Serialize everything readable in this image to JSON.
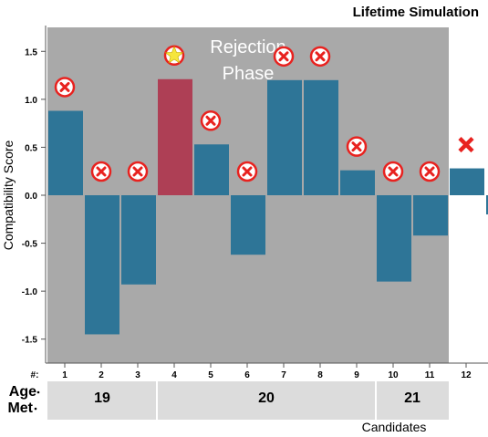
{
  "header": {
    "title": "Lifetime Simulation"
  },
  "chart_data": {
    "type": "bar",
    "title": "Lifetime Simulation",
    "ylabel": "Compatibility Score",
    "xlabel": "Candidates",
    "ylim": [
      -1.75,
      1.75
    ],
    "yticks": [
      "1.5",
      "1.0",
      "0.5",
      "0.0",
      "-0.5",
      "-1.0",
      "-1.5"
    ],
    "ytick_values": [
      1.5,
      1.0,
      0.5,
      0.0,
      -0.5,
      -1.0,
      -1.5
    ],
    "x_prefix_label": "#:",
    "categories": [
      "1",
      "2",
      "3",
      "4",
      "5",
      "6",
      "7",
      "8",
      "9",
      "10",
      "11",
      "12",
      ""
    ],
    "values": [
      0.88,
      -1.45,
      -0.93,
      1.21,
      0.53,
      -0.62,
      1.2,
      1.2,
      0.26,
      -0.9,
      -0.42,
      0.28,
      -0.2
    ],
    "markers": [
      "reject",
      "reject",
      "reject",
      "chosen",
      "reject",
      "reject",
      "reject",
      "reject",
      "reject",
      "reject",
      "reject",
      "cross",
      "none"
    ],
    "highlight": [
      false,
      false,
      false,
      true,
      false,
      false,
      false,
      false,
      false,
      false,
      false,
      false,
      false
    ],
    "phase_annotation": [
      "Rejection",
      "Phase"
    ],
    "age_met_label": [
      "Age",
      "Met"
    ],
    "age_groups": [
      {
        "label": "19",
        "from": 1,
        "to": 3
      },
      {
        "label": "20",
        "from": 4,
        "to": 9
      },
      {
        "label": "21",
        "from": 10,
        "to": 11
      }
    ],
    "colors": {
      "bar": "#2e7597",
      "highlight_bar": "#ae3f55",
      "phase_background": "#a9a9a9",
      "age_band": "#dcdcdc",
      "reject_marker": "#e8221f",
      "star": "#f5e63c"
    },
    "rejection_phase_end": 12
  }
}
